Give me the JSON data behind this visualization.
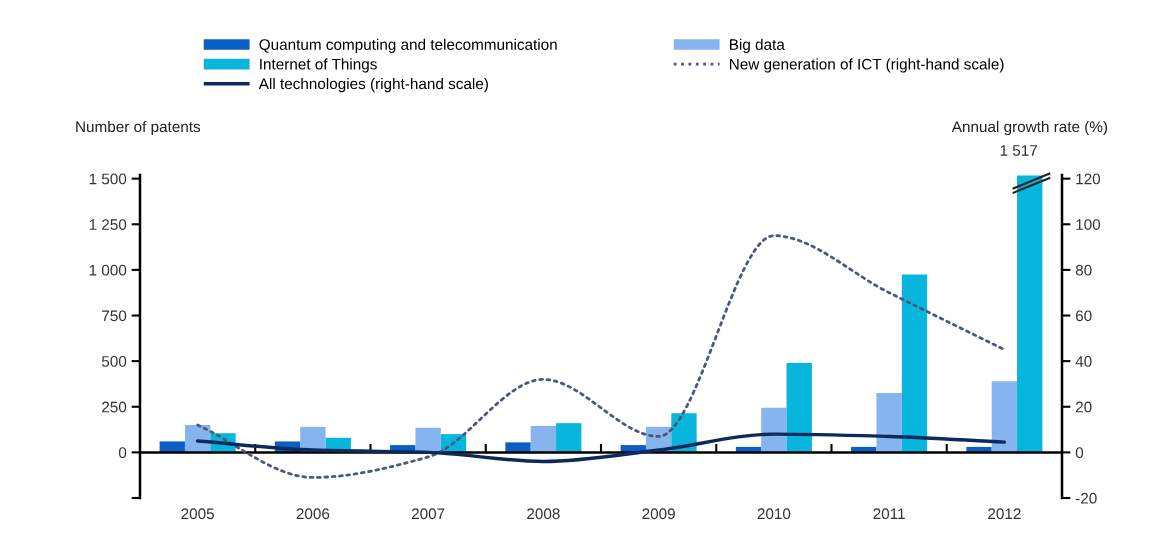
{
  "chart_data": {
    "type": "bar",
    "categories": [
      "2005",
      "2006",
      "2007",
      "2008",
      "2009",
      "2010",
      "2011",
      "2012"
    ],
    "ylabel": "Number of patents",
    "y2label": "Annual growth rate (%)",
    "ylim": [
      -250,
      1520
    ],
    "yticks": [
      {
        "value": -250,
        "label": null
      },
      0,
      {
        "value": 250,
        "label": "250"
      },
      {
        "value": 500,
        "label": "500"
      },
      {
        "value": 750,
        "label": "750"
      },
      {
        "value": 1000,
        "label": "1 000"
      },
      {
        "value": 1250,
        "label": "1 250"
      },
      {
        "value": 1500,
        "label": "1 500"
      }
    ],
    "y2lim": [
      -20,
      121.6
    ],
    "y2ticks": [
      -20,
      0,
      20,
      40,
      60,
      80,
      100,
      120
    ],
    "legend": "top",
    "series": [
      {
        "name": "Quantum computing and telecommunication",
        "color": "#0a5fc4",
        "values": [
          60,
          60,
          40,
          55,
          40,
          30,
          30,
          30
        ]
      },
      {
        "name": "Big data",
        "color": "#85b4ee",
        "values": [
          150,
          140,
          135,
          145,
          140,
          245,
          325,
          390
        ]
      },
      {
        "name": "Internet of Things",
        "color": "#07b5dd",
        "values": [
          105,
          80,
          100,
          160,
          215,
          490,
          975,
          1517
        ],
        "value_labels": [
          null,
          null,
          null,
          null,
          null,
          null,
          null,
          "1 517"
        ]
      },
      {
        "name": "New generation of ICT (right-hand scale)",
        "type": "line",
        "axis": "y2",
        "line_style": "dotted",
        "color": "#4a5a7a",
        "values": [
          12,
          -11,
          -2,
          32,
          7,
          95,
          70,
          45
        ]
      },
      {
        "name": "All technologies (right-hand scale)",
        "type": "line",
        "axis": "y2",
        "line_style": "solid",
        "color": "#0d2a5e",
        "values": [
          5,
          1,
          0,
          -4,
          1,
          8,
          7,
          4.5
        ]
      }
    ]
  }
}
